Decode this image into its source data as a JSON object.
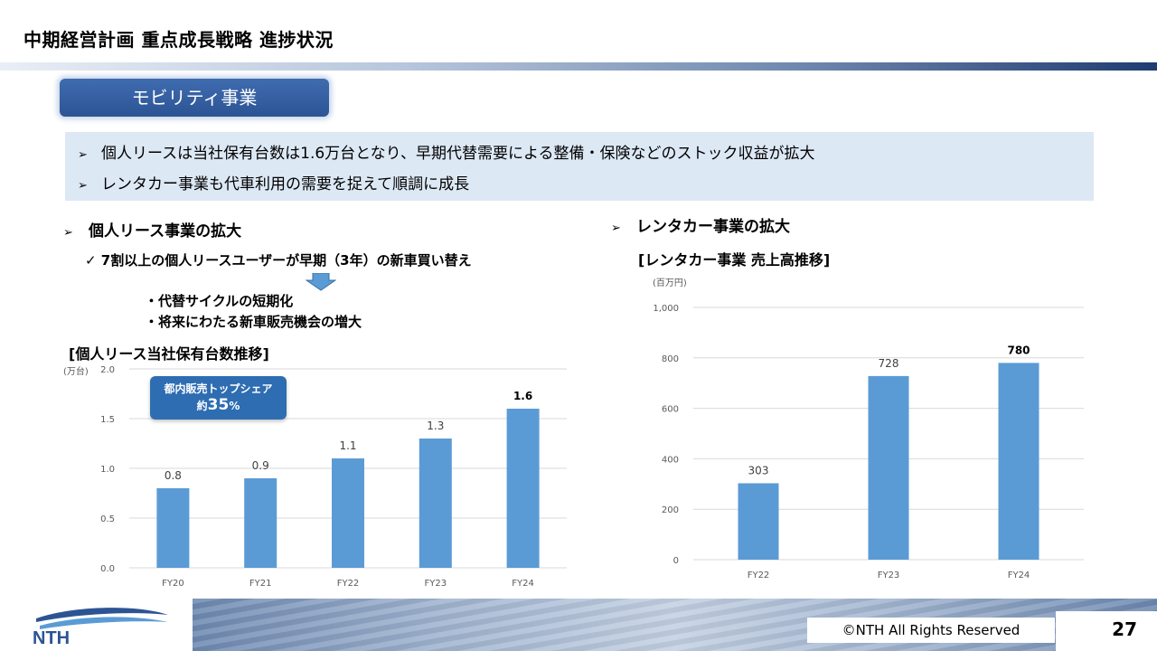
{
  "header": {
    "title": "中期経営計画 重点成長戦略 進捗状況"
  },
  "section": {
    "label": "モビリティ事業"
  },
  "summary": {
    "lines": [
      "個人リースは当社保有台数は1.6万台となり、早期代替需要による整備・保険などのストック収益が拡大",
      "レンタカー事業も代車利用の需要を捉えて順調に成長"
    ]
  },
  "left": {
    "heading": "個人リース事業の拡大",
    "check": "✓ 7割以上の個人リースユーザーが早期（3年）の新車買い替え",
    "bullets": [
      "・代替サイクルの短期化",
      "・将来にわたる新車販売機会の増大"
    ],
    "chart_title": "[個人リース当社保有台数推移]",
    "badge": {
      "line1": "都内販売トップシェア",
      "prefix": "約",
      "value": "35",
      "suffix": "%"
    }
  },
  "right": {
    "heading": "レンタカー事業の拡大",
    "chart_title": "[レンタカー事業 売上高推移]"
  },
  "footer": {
    "copyright": "©NTH All Rights Reserved",
    "page": "27",
    "logo_text": "NTH"
  },
  "colors": {
    "bar": "#5b9bd5",
    "accent": "#2c5494",
    "grid": "#d9d9d9"
  },
  "chart_data": [
    {
      "type": "bar",
      "title": "[個人リース当社保有台数推移]",
      "unit_label": "(万台)",
      "categories": [
        "FY20",
        "FY21",
        "FY22",
        "FY23",
        "FY24"
      ],
      "values": [
        0.8,
        0.9,
        1.1,
        1.3,
        1.6
      ],
      "labels": [
        "0.8",
        "0.9",
        "1.1",
        "1.3",
        "1.6"
      ],
      "bold_last": true,
      "ylim": [
        0,
        2.0
      ],
      "yticks": [
        "0.0",
        "0.5",
        "1.0",
        "1.5",
        "2.0"
      ],
      "ytick_values": [
        0,
        0.5,
        1.0,
        1.5,
        2.0
      ],
      "grid": true
    },
    {
      "type": "bar",
      "title": "[レンタカー事業 売上高推移]",
      "unit_label": "(百万円)",
      "categories": [
        "FY22",
        "FY23",
        "FY24"
      ],
      "values": [
        303,
        728,
        780
      ],
      "labels": [
        "303",
        "728",
        "780"
      ],
      "bold_last": true,
      "ylim": [
        0,
        1000
      ],
      "yticks": [
        "0",
        "200",
        "400",
        "600",
        "800",
        "1,000"
      ],
      "ytick_values": [
        0,
        200,
        400,
        600,
        800,
        1000
      ],
      "grid": true
    }
  ]
}
